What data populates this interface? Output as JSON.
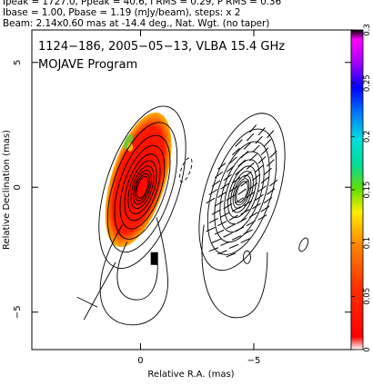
{
  "header": {
    "line1": "Ipeak = 1727.0, Ppeak = 40.6, I RMS = 0.29, P RMS = 0.36",
    "line2": "Ibase = 1.00, Pbase = 1.19 (mJy/beam), steps: x 2",
    "line3": "Beam: 2.14x0.60 mas at -14.4 deg., Nat. Wgt. (no taper)"
  },
  "plot": {
    "source_label": "1124−186, 2005−05−13, VLBA 15.4 GHz",
    "program_label": "MOJAVE Program"
  },
  "chart_data": {
    "type": "heatmap",
    "xlabel": "Relative R.A. (mas)",
    "ylabel": "Relative Declination (mas)",
    "xlim": [
      4.8,
      -9.3
    ],
    "ylim": [
      -6.5,
      6.3
    ],
    "x_ticks": [
      {
        "value": 0,
        "label": "0"
      },
      {
        "value": -5,
        "label": "−5"
      }
    ],
    "y_ticks": [
      {
        "value": 5,
        "label": "5"
      },
      {
        "value": 0,
        "label": "0"
      },
      {
        "value": -5,
        "label": "−5"
      }
    ],
    "grid": false,
    "colorbar": {
      "min": 0,
      "max": 0.3,
      "ticks": [
        0,
        0.05,
        0.1,
        0.15,
        0.2,
        0.25,
        0.3
      ],
      "tick_labels": [
        "0",
        "0.05",
        "0.1",
        "0.15",
        "0.2",
        "0.25",
        "0.3"
      ],
      "colors": [
        "#ffffff",
        "#ff0000",
        "#ff8800",
        "#ffee00",
        "#66dd00",
        "#00cc88",
        "#00dddd",
        "#0077ff",
        "#0000ff",
        "#8800ff",
        "#ff00ff",
        "#000000"
      ]
    },
    "panels": [
      {
        "name": "",
        "center": [
          0,
          0
        ],
        "contour_levels": 10,
        "polarized_region": {
          "center": [
            0.1,
            0.3
          ],
          "semi_axes": [
            1.2,
            2.8
          ],
          "pa_deg": -17
        }
      },
      {
        "name": "",
        "center": [
          -4.4,
          0
        ],
        "contour_levels": 10,
        "vectors": true
      }
    ]
  }
}
